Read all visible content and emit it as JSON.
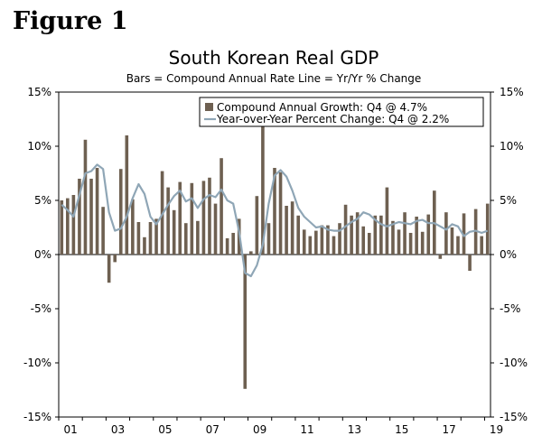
{
  "figure_label": "Figure 1",
  "chart_data": {
    "type": "bar",
    "title": "South Korean Real GDP",
    "subtitle": "Bars = Compound Annual Rate     Line = Yr/Yr % Change",
    "ylim": [
      -15,
      15
    ],
    "yticks_left": [
      "15%",
      "10%",
      "5%",
      "0%",
      "-5%",
      "-10%",
      "-15%"
    ],
    "yticks_right": [
      "15%",
      "10%",
      "5%",
      "0%",
      "-5%",
      "-10%",
      "-15%"
    ],
    "x_tick_labels": [
      "01",
      "03",
      "05",
      "07",
      "09",
      "11",
      "13",
      "15",
      "17",
      "19"
    ],
    "x_start_year": 2001,
    "series": [
      {
        "name": "Compound Annual Growth: Q4 @ 4.7%",
        "type": "bar",
        "color": "#6e6051",
        "values": [
          5.0,
          5.2,
          5.5,
          7.0,
          10.6,
          7.0,
          8.0,
          4.4,
          -2.6,
          -0.7,
          7.9,
          11.0,
          5.1,
          3.0,
          1.6,
          3.0,
          3.3,
          7.7,
          6.2,
          4.1,
          6.7,
          2.9,
          6.6,
          3.1,
          6.8,
          7.1,
          4.7,
          8.9,
          1.5,
          2.0,
          3.3,
          -12.4,
          0.3,
          5.4,
          11.8,
          2.9,
          8.0,
          7.6,
          4.5,
          4.9,
          3.6,
          2.3,
          1.7,
          2.2,
          2.7,
          2.7,
          1.7,
          2.9,
          4.6,
          3.6,
          3.9,
          2.6,
          2.0,
          3.6,
          3.6,
          6.2,
          3.1,
          2.3,
          3.9,
          2.0,
          3.5,
          2.1,
          3.7,
          5.9,
          -0.4,
          3.9,
          2.5,
          1.7,
          3.8,
          -1.5,
          4.2,
          1.7,
          4.7
        ]
      },
      {
        "name": "Year-over-Year Percent Change: Q4 @ 2.2%",
        "type": "line",
        "color": "#8fa6b6",
        "values": [
          4.6,
          4.1,
          3.5,
          5.5,
          7.5,
          7.7,
          8.3,
          7.9,
          3.9,
          2.2,
          2.4,
          3.5,
          5.2,
          6.5,
          5.6,
          3.5,
          2.8,
          3.7,
          4.6,
          5.4,
          5.9,
          4.9,
          5.2,
          4.3,
          5.1,
          5.5,
          5.3,
          6.0,
          5.0,
          4.7,
          2.1,
          -1.7,
          -2.0,
          -1.0,
          0.9,
          4.7,
          7.3,
          7.8,
          7.2,
          5.9,
          4.3,
          3.5,
          3.0,
          2.5,
          2.6,
          2.3,
          2.2,
          2.2,
          2.6,
          3.0,
          3.3,
          3.9,
          3.7,
          3.2,
          2.8,
          2.6,
          2.8,
          3.0,
          2.9,
          2.8,
          3.1,
          3.2,
          2.9,
          2.9,
          2.6,
          2.3,
          2.8,
          2.6,
          1.7,
          2.1,
          2.2,
          2.0,
          2.2
        ]
      }
    ]
  }
}
